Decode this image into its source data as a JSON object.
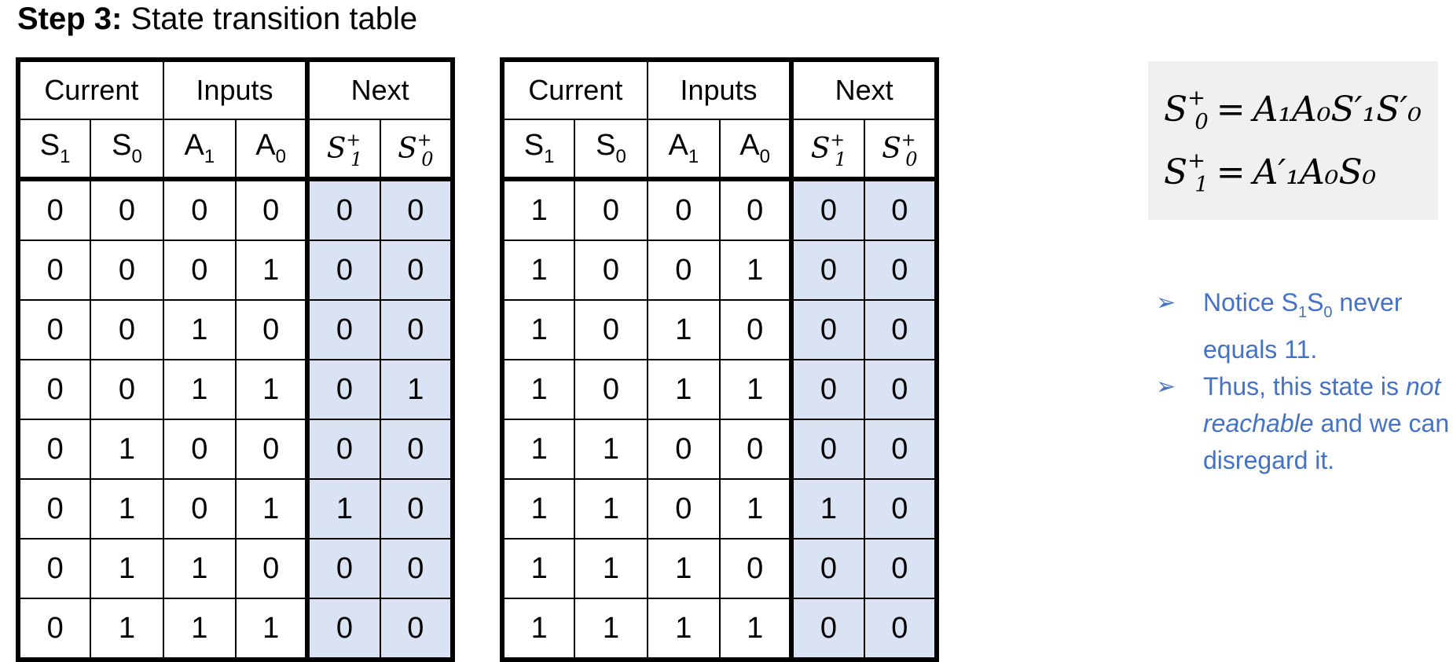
{
  "title": {
    "bold": "Step 3:",
    "rest": "State transition table"
  },
  "tables": [
    {
      "groups": [
        "Current",
        "Inputs",
        "Next"
      ],
      "rows": [
        [
          "0",
          "0",
          "0",
          "0",
          "0",
          "0"
        ],
        [
          "0",
          "0",
          "0",
          "1",
          "0",
          "0"
        ],
        [
          "0",
          "0",
          "1",
          "0",
          "0",
          "0"
        ],
        [
          "0",
          "0",
          "1",
          "1",
          "0",
          "1"
        ],
        [
          "0",
          "1",
          "0",
          "0",
          "0",
          "0"
        ],
        [
          "0",
          "1",
          "0",
          "1",
          "1",
          "0"
        ],
        [
          "0",
          "1",
          "1",
          "0",
          "0",
          "0"
        ],
        [
          "0",
          "1",
          "1",
          "1",
          "0",
          "0"
        ]
      ]
    },
    {
      "groups": [
        "Current",
        "Inputs",
        "Next"
      ],
      "rows": [
        [
          "1",
          "0",
          "0",
          "0",
          "0",
          "0"
        ],
        [
          "1",
          "0",
          "0",
          "1",
          "0",
          "0"
        ],
        [
          "1",
          "0",
          "1",
          "0",
          "0",
          "0"
        ],
        [
          "1",
          "0",
          "1",
          "1",
          "0",
          "0"
        ],
        [
          "1",
          "1",
          "0",
          "0",
          "0",
          "0"
        ],
        [
          "1",
          "1",
          "0",
          "1",
          "1",
          "0"
        ],
        [
          "1",
          "1",
          "1",
          "0",
          "0",
          "0"
        ],
        [
          "1",
          "1",
          "1",
          "1",
          "0",
          "0"
        ]
      ]
    }
  ],
  "columns": [
    {
      "base": "S",
      "sub": "1"
    },
    {
      "base": "S",
      "sub": "0"
    },
    {
      "base": "A",
      "sub": "1"
    },
    {
      "base": "A",
      "sub": "0"
    },
    {
      "base": "S",
      "sub": "1",
      "sup": "+"
    },
    {
      "base": "S",
      "sub": "0",
      "sup": "+"
    }
  ],
  "equations": {
    "eq1": {
      "lhs": "S",
      "lhs_sub": "0",
      "lhs_sup": "+",
      "eq": "=",
      "rhs": "A₁A₀S′₁S′₀"
    },
    "eq2": {
      "lhs": "S",
      "lhs_sub": "1",
      "lhs_sup": "+",
      "eq": "=",
      "rhs": "A′₁A₀S₀"
    }
  },
  "notes": {
    "bullet": "➢",
    "n1_a": "Notice S",
    "n1_s1": "1",
    "n1_b": "S",
    "n1_s0": "0",
    "n1_c": " never equals 11.",
    "n2_a": "Thus, this state is ",
    "n2_em": "not reachable",
    "n2_b": " and we can disregard it."
  },
  "colors": {
    "shade": "#dae3f3",
    "note": "#4472c4",
    "eqbox": "#f0f0f0"
  }
}
